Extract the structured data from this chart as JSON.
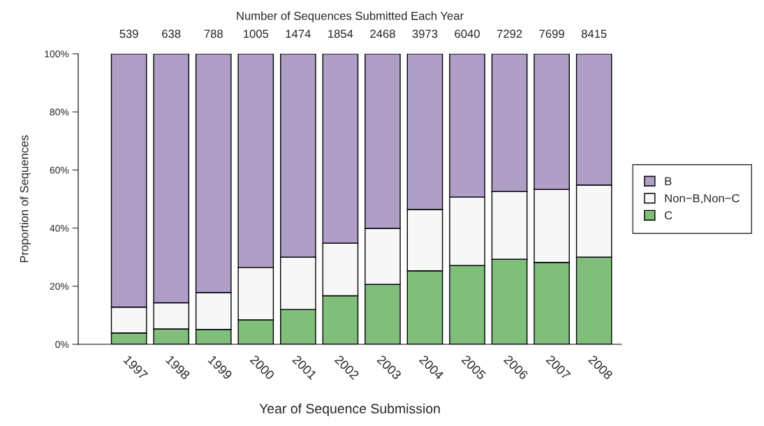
{
  "chart_data": {
    "type": "bar",
    "stacked": true,
    "title": "Number of Sequences Submitted Each Year",
    "xlabel": "Year of Sequence Submission",
    "ylabel": "Proportion of Sequences",
    "categories": [
      "1997",
      "1998",
      "1999",
      "2000",
      "2001",
      "2002",
      "2003",
      "2004",
      "2005",
      "2006",
      "2007",
      "2008"
    ],
    "series": [
      {
        "name": "C",
        "color": "#7fbf7b",
        "values": [
          3.9,
          5.3,
          5.1,
          8.4,
          12.0,
          16.7,
          20.6,
          25.3,
          27.1,
          29.3,
          28.2,
          30.0
        ]
      },
      {
        "name": "Non−B,Non−C",
        "color": "#f7f7f7",
        "values": [
          8.9,
          9.0,
          12.7,
          18.0,
          18.0,
          18.1,
          19.3,
          21.1,
          23.6,
          23.3,
          25.1,
          24.8
        ]
      },
      {
        "name": "B",
        "color": "#af9fc7",
        "values": [
          87.2,
          85.7,
          82.2,
          73.6,
          70.0,
          65.2,
          60.1,
          53.6,
          49.3,
          47.4,
          46.7,
          45.2
        ]
      }
    ],
    "annotations": [
      {
        "text": "539",
        "x": "1997",
        "y": 100
      },
      {
        "text": "638",
        "x": "1998",
        "y": 100
      },
      {
        "text": "788",
        "x": "1999",
        "y": 100
      },
      {
        "text": "1005",
        "x": "2000",
        "y": 100
      },
      {
        "text": "1474",
        "x": "2001",
        "y": 100
      },
      {
        "text": "1854",
        "x": "2002",
        "y": 100
      },
      {
        "text": "2468",
        "x": "2003",
        "y": 100
      },
      {
        "text": "3973",
        "x": "2004",
        "y": 100
      },
      {
        "text": "6040",
        "x": "2005",
        "y": 100
      },
      {
        "text": "7292",
        "x": "2006",
        "y": 100
      },
      {
        "text": "7699",
        "x": "2007",
        "y": 100
      },
      {
        "text": "8415",
        "x": "2008",
        "y": 100
      }
    ],
    "ylim": [
      0,
      100
    ],
    "yticks": [
      {
        "value": 0,
        "label": "0%"
      },
      {
        "value": 20,
        "label": "20%"
      },
      {
        "value": 40,
        "label": "40%"
      },
      {
        "value": 60,
        "label": "60%"
      },
      {
        "value": 80,
        "label": "80%"
      },
      {
        "value": 100,
        "label": "100%"
      }
    ],
    "legend": "right",
    "grid": false
  }
}
